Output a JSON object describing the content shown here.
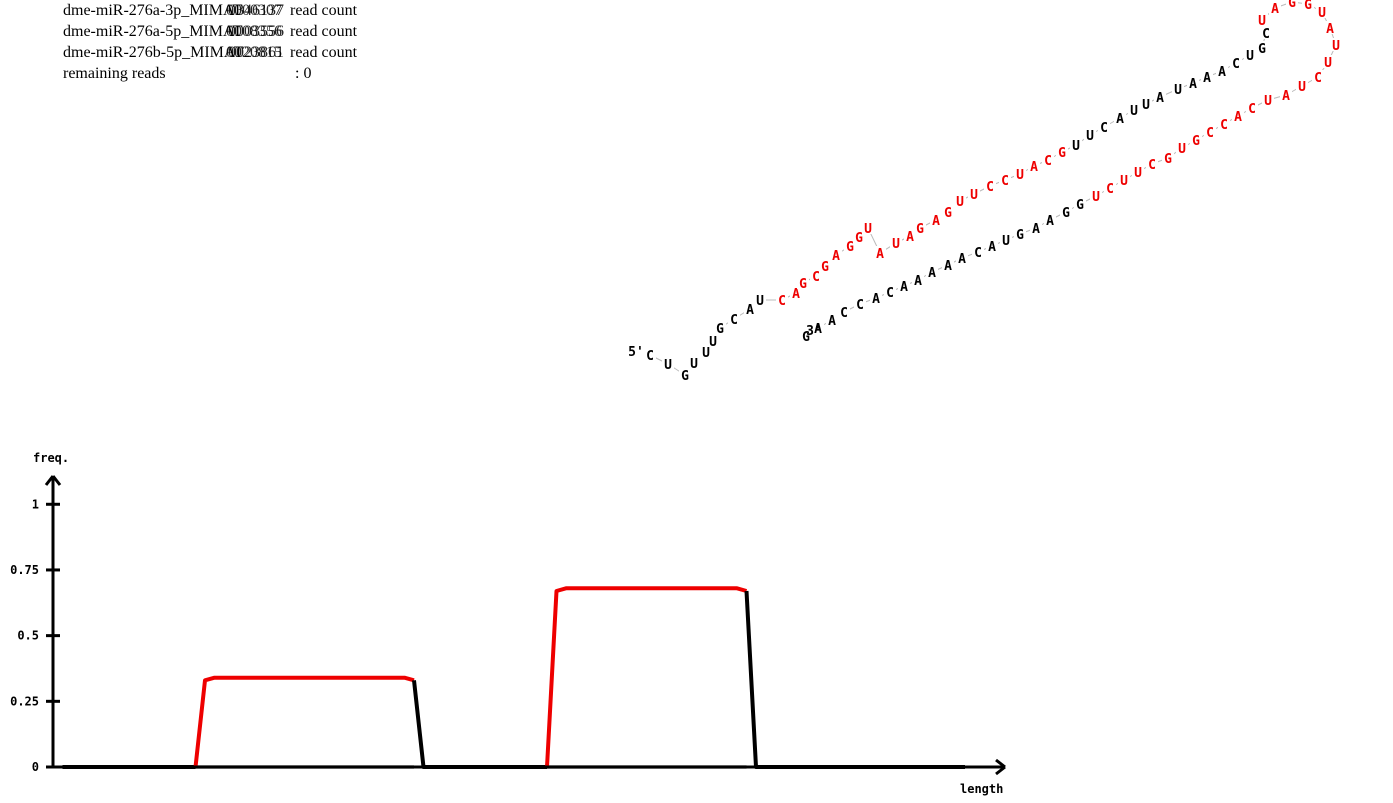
{
  "legend": [
    {
      "name": "dme-miR-276a-3p_MIMAT",
      "id_a": "0000307",
      "id_b": "0346137",
      "tail": "read count"
    },
    {
      "name": "dme-miR-276a-5p_MIMAT",
      "id_a": "0008356",
      "id_b": "0003556",
      "tail": "read count"
    },
    {
      "name": "dme-miR-276b-5p_MIMAT",
      "id_a": "0020815",
      "id_b": "0023861",
      "tail": "read count"
    }
  ],
  "remaining": {
    "label": "remaining reads",
    "value": ": 0"
  },
  "structure": {
    "five_prime": "5'",
    "three_prime": "3'",
    "colors": {
      "mature": "#ee0000",
      "other": "#000000",
      "link": "#bbbbbb"
    },
    "nucleotides": [
      {
        "b": "C",
        "c": "k"
      },
      {
        "b": "U",
        "c": "k"
      },
      {
        "b": "G",
        "c": "k"
      },
      {
        "b": "U",
        "c": "k"
      },
      {
        "b": "U",
        "c": "k"
      },
      {
        "b": "U",
        "c": "k"
      },
      {
        "b": "G",
        "c": "k"
      },
      {
        "b": "C",
        "c": "k"
      },
      {
        "b": "A",
        "c": "k"
      },
      {
        "b": "U",
        "c": "k"
      },
      {
        "b": "C",
        "c": "r"
      },
      {
        "b": "A",
        "c": "r"
      },
      {
        "b": "G",
        "c": "r"
      },
      {
        "b": "C",
        "c": "r"
      },
      {
        "b": "G",
        "c": "r"
      },
      {
        "b": "A",
        "c": "r"
      },
      {
        "b": "G",
        "c": "r"
      },
      {
        "b": "G",
        "c": "r"
      },
      {
        "b": "U",
        "c": "r"
      },
      {
        "b": "A",
        "c": "r"
      },
      {
        "b": "U",
        "c": "r"
      },
      {
        "b": "A",
        "c": "r"
      },
      {
        "b": "G",
        "c": "r"
      },
      {
        "b": "A",
        "c": "r"
      },
      {
        "b": "G",
        "c": "r"
      },
      {
        "b": "U",
        "c": "r"
      },
      {
        "b": "U",
        "c": "r"
      },
      {
        "b": "C",
        "c": "r"
      },
      {
        "b": "C",
        "c": "r"
      },
      {
        "b": "U",
        "c": "r"
      },
      {
        "b": "A",
        "c": "r"
      },
      {
        "b": "C",
        "c": "r"
      },
      {
        "b": "G",
        "c": "r"
      },
      {
        "b": "U",
        "c": "k"
      },
      {
        "b": "U",
        "c": "k"
      },
      {
        "b": "C",
        "c": "k"
      },
      {
        "b": "A",
        "c": "k"
      },
      {
        "b": "U",
        "c": "k"
      },
      {
        "b": "U",
        "c": "k"
      },
      {
        "b": "A",
        "c": "k"
      },
      {
        "b": "U",
        "c": "k"
      },
      {
        "b": "A",
        "c": "k"
      },
      {
        "b": "A",
        "c": "k"
      },
      {
        "b": "A",
        "c": "k"
      },
      {
        "b": "C",
        "c": "k"
      },
      {
        "b": "U",
        "c": "k"
      },
      {
        "b": "G",
        "c": "k"
      },
      {
        "b": "C",
        "c": "k"
      },
      {
        "b": "U",
        "c": "r"
      },
      {
        "b": "A",
        "c": "r"
      },
      {
        "b": "G",
        "c": "r"
      },
      {
        "b": "G",
        "c": "r"
      },
      {
        "b": "U",
        "c": "r"
      },
      {
        "b": "A",
        "c": "r"
      },
      {
        "b": "U",
        "c": "r"
      },
      {
        "b": "U",
        "c": "r"
      },
      {
        "b": "C",
        "c": "r"
      },
      {
        "b": "U",
        "c": "r"
      },
      {
        "b": "A",
        "c": "r"
      },
      {
        "b": "U",
        "c": "r"
      },
      {
        "b": "C",
        "c": "r"
      },
      {
        "b": "A",
        "c": "r"
      },
      {
        "b": "C",
        "c": "r"
      },
      {
        "b": "C",
        "c": "r"
      },
      {
        "b": "G",
        "c": "r"
      },
      {
        "b": "U",
        "c": "r"
      },
      {
        "b": "G",
        "c": "r"
      },
      {
        "b": "C",
        "c": "r"
      },
      {
        "b": "U",
        "c": "r"
      },
      {
        "b": "U",
        "c": "r"
      },
      {
        "b": "C",
        "c": "r"
      },
      {
        "b": "U",
        "c": "r"
      },
      {
        "b": "G",
        "c": "k"
      },
      {
        "b": "G",
        "c": "k"
      },
      {
        "b": "A",
        "c": "k"
      },
      {
        "b": "A",
        "c": "k"
      },
      {
        "b": "G",
        "c": "k"
      },
      {
        "b": "U",
        "c": "k"
      },
      {
        "b": "A",
        "c": "k"
      },
      {
        "b": "C",
        "c": "k"
      },
      {
        "b": "A",
        "c": "k"
      },
      {
        "b": "A",
        "c": "k"
      },
      {
        "b": "A",
        "c": "k"
      },
      {
        "b": "A",
        "c": "k"
      },
      {
        "b": "A",
        "c": "k"
      },
      {
        "b": "C",
        "c": "k"
      },
      {
        "b": "A",
        "c": "k"
      },
      {
        "b": "C",
        "c": "k"
      },
      {
        "b": "C",
        "c": "k"
      },
      {
        "b": "A",
        "c": "k"
      },
      {
        "b": "A",
        "c": "k"
      },
      {
        "b": "G",
        "c": "k"
      }
    ]
  },
  "chart_data": {
    "type": "line",
    "ylabel": "freq.",
    "xlabel": "length",
    "yticks": [
      0,
      0.25,
      0.5,
      0.75,
      1
    ],
    "ytick_labels": [
      "0",
      "0.25",
      "0.5",
      "0.75",
      "1"
    ],
    "ylim": [
      0,
      1.1
    ],
    "xlim": [
      0,
      100
    ],
    "colors": {
      "mature": "#ee0000",
      "other": "#000000",
      "baseline": "#bbbbbb"
    },
    "series": [
      {
        "values": [
          [
            1,
            0
          ],
          [
            15,
            0
          ]
        ],
        "color": "other"
      },
      {
        "values": [
          [
            15,
            0
          ],
          [
            16,
            0.33
          ],
          [
            17,
            0.34
          ],
          [
            37,
            0.34
          ],
          [
            38,
            0.33
          ]
        ],
        "color": "mature"
      },
      {
        "values": [
          [
            38,
            0.33
          ],
          [
            39,
            0
          ],
          [
            52,
            0
          ]
        ],
        "color": "other"
      },
      {
        "values": [
          [
            52,
            0
          ],
          [
            53,
            0.67
          ],
          [
            54,
            0.68
          ],
          [
            72,
            0.68
          ],
          [
            73,
            0.67
          ]
        ],
        "color": "mature"
      },
      {
        "values": [
          [
            73,
            0.67
          ],
          [
            74,
            0
          ],
          [
            96,
            0
          ]
        ],
        "color": "other"
      }
    ],
    "baseline_segments": [
      [
        15,
        38
      ],
      [
        52,
        73
      ]
    ]
  }
}
